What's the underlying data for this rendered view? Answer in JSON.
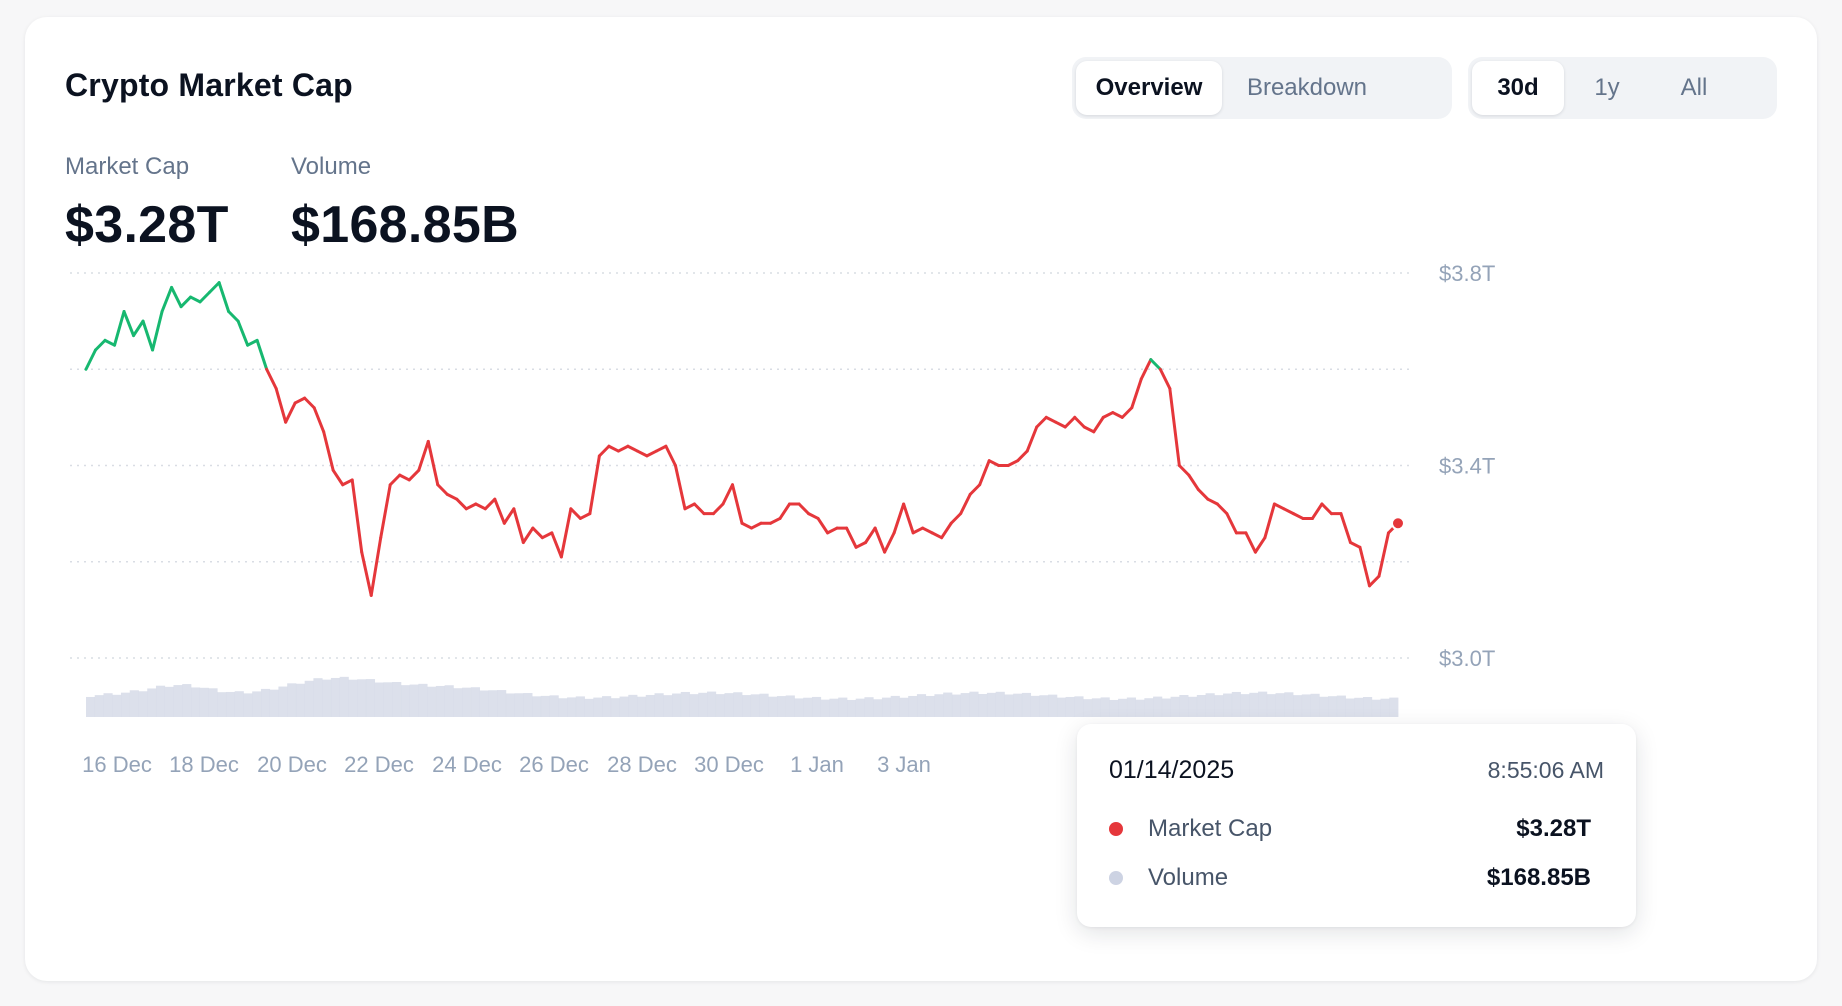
{
  "header": {
    "title": "Crypto Market Cap",
    "view_tabs": [
      {
        "label": "Overview",
        "active": true
      },
      {
        "label": "Breakdown",
        "active": false
      }
    ],
    "range_tabs": [
      {
        "label": "30d",
        "active": true
      },
      {
        "label": "1y",
        "active": false
      },
      {
        "label": "All",
        "active": false
      }
    ]
  },
  "stats": {
    "market_cap": {
      "label": "Market Cap",
      "value": "$3.28T"
    },
    "volume": {
      "label": "Volume",
      "value": "$168.85B"
    }
  },
  "tooltip": {
    "date": "01/14/2025",
    "time": "8:55:06 AM",
    "rows": [
      {
        "name": "Market Cap",
        "value": "$3.28T",
        "color": "#e5373b"
      },
      {
        "name": "Volume",
        "value": "$168.85B",
        "color": "#cdd3e3"
      }
    ]
  },
  "colors": {
    "up": "#17b870",
    "down": "#e5373b",
    "volume": "#d6dae8",
    "grid": "#d9dde4"
  },
  "chart_data": {
    "type": "line",
    "y_ticks": [
      "$3.8T",
      "$3.4T",
      "$3.0T"
    ],
    "x_ticks": [
      "16 Dec",
      "18 Dec",
      "20 Dec",
      "22 Dec",
      "24 Dec",
      "26 Dec",
      "28 Dec",
      "30 Dec",
      "1 Jan",
      "3 Jan"
    ],
    "ylim": [
      3.0,
      3.8
    ],
    "series": [
      {
        "values": [
          3.6,
          3.64,
          3.66,
          3.65,
          3.72,
          3.67,
          3.7,
          3.64,
          3.72,
          3.77,
          3.73,
          3.75,
          3.74,
          3.76,
          3.78,
          3.72,
          3.7,
          3.65,
          3.66,
          3.6,
          3.56,
          3.49,
          3.53,
          3.54,
          3.52,
          3.47,
          3.39,
          3.36,
          3.37,
          3.22,
          3.13,
          3.25,
          3.36,
          3.38,
          3.37,
          3.39,
          3.45,
          3.36,
          3.34,
          3.33,
          3.31,
          3.32,
          3.31,
          3.33,
          3.28,
          3.31,
          3.24,
          3.27,
          3.25,
          3.26,
          3.21,
          3.31,
          3.29,
          3.3,
          3.42,
          3.44,
          3.43,
          3.44,
          3.43,
          3.42,
          3.43,
          3.44,
          3.4,
          3.31,
          3.32,
          3.3,
          3.3,
          3.32,
          3.36,
          3.28,
          3.27,
          3.28,
          3.28,
          3.29,
          3.32,
          3.32,
          3.3,
          3.29,
          3.26,
          3.27,
          3.27,
          3.23,
          3.24,
          3.27,
          3.22,
          3.26,
          3.32,
          3.26,
          3.27,
          3.26,
          3.25,
          3.28,
          3.3,
          3.34,
          3.36,
          3.41,
          3.4,
          3.4,
          3.41,
          3.43,
          3.48,
          3.5,
          3.49,
          3.48,
          3.5,
          3.48,
          3.47,
          3.5,
          3.51,
          3.5,
          3.52,
          3.58,
          3.62,
          3.6,
          3.56,
          3.4,
          3.38,
          3.35,
          3.33,
          3.32,
          3.3,
          3.26,
          3.26,
          3.22,
          3.25,
          3.32,
          3.31,
          3.3,
          3.29,
          3.29,
          3.32,
          3.3,
          3.3,
          3.24,
          3.23,
          3.15,
          3.17,
          3.26,
          3.28
        ]
      }
    ]
  }
}
